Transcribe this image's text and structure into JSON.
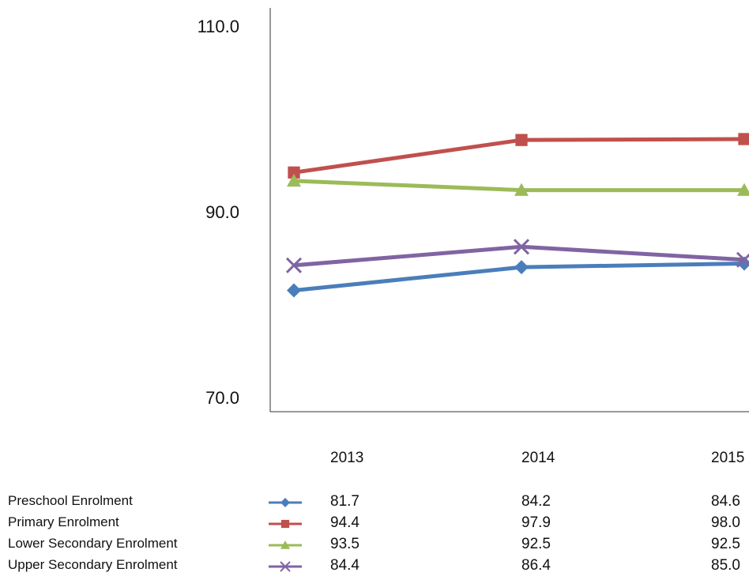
{
  "chart_data": {
    "type": "line",
    "categories": [
      "2013",
      "2014",
      "2015"
    ],
    "yticks": [
      "110.0",
      "90.0",
      "70.0"
    ],
    "ylim": [
      70,
      110
    ],
    "grid": false,
    "legend": "table-below",
    "series": [
      {
        "name": "Preschool Enrolment",
        "values": [
          81.7,
          84.2,
          84.6
        ],
        "display": [
          "81.7",
          "84.2",
          "84.6"
        ],
        "color": "#4a7ebb",
        "marker": "diamond"
      },
      {
        "name": "Primary Enrolment",
        "values": [
          94.4,
          97.9,
          98.0
        ],
        "display": [
          "94.4",
          "97.9",
          "98.0"
        ],
        "color": "#c0504d",
        "marker": "square"
      },
      {
        "name": "Lower Secondary Enrolment",
        "values": [
          93.5,
          92.5,
          92.5
        ],
        "display": [
          "93.5",
          "92.5",
          "92.5"
        ],
        "color": "#9bbb59",
        "marker": "triangle"
      },
      {
        "name": "Upper Secondary Enrolment",
        "values": [
          84.4,
          86.4,
          85.0
        ],
        "display": [
          "84.4",
          "86.4",
          "85.0"
        ],
        "color": "#8064a2",
        "marker": "x"
      }
    ]
  }
}
